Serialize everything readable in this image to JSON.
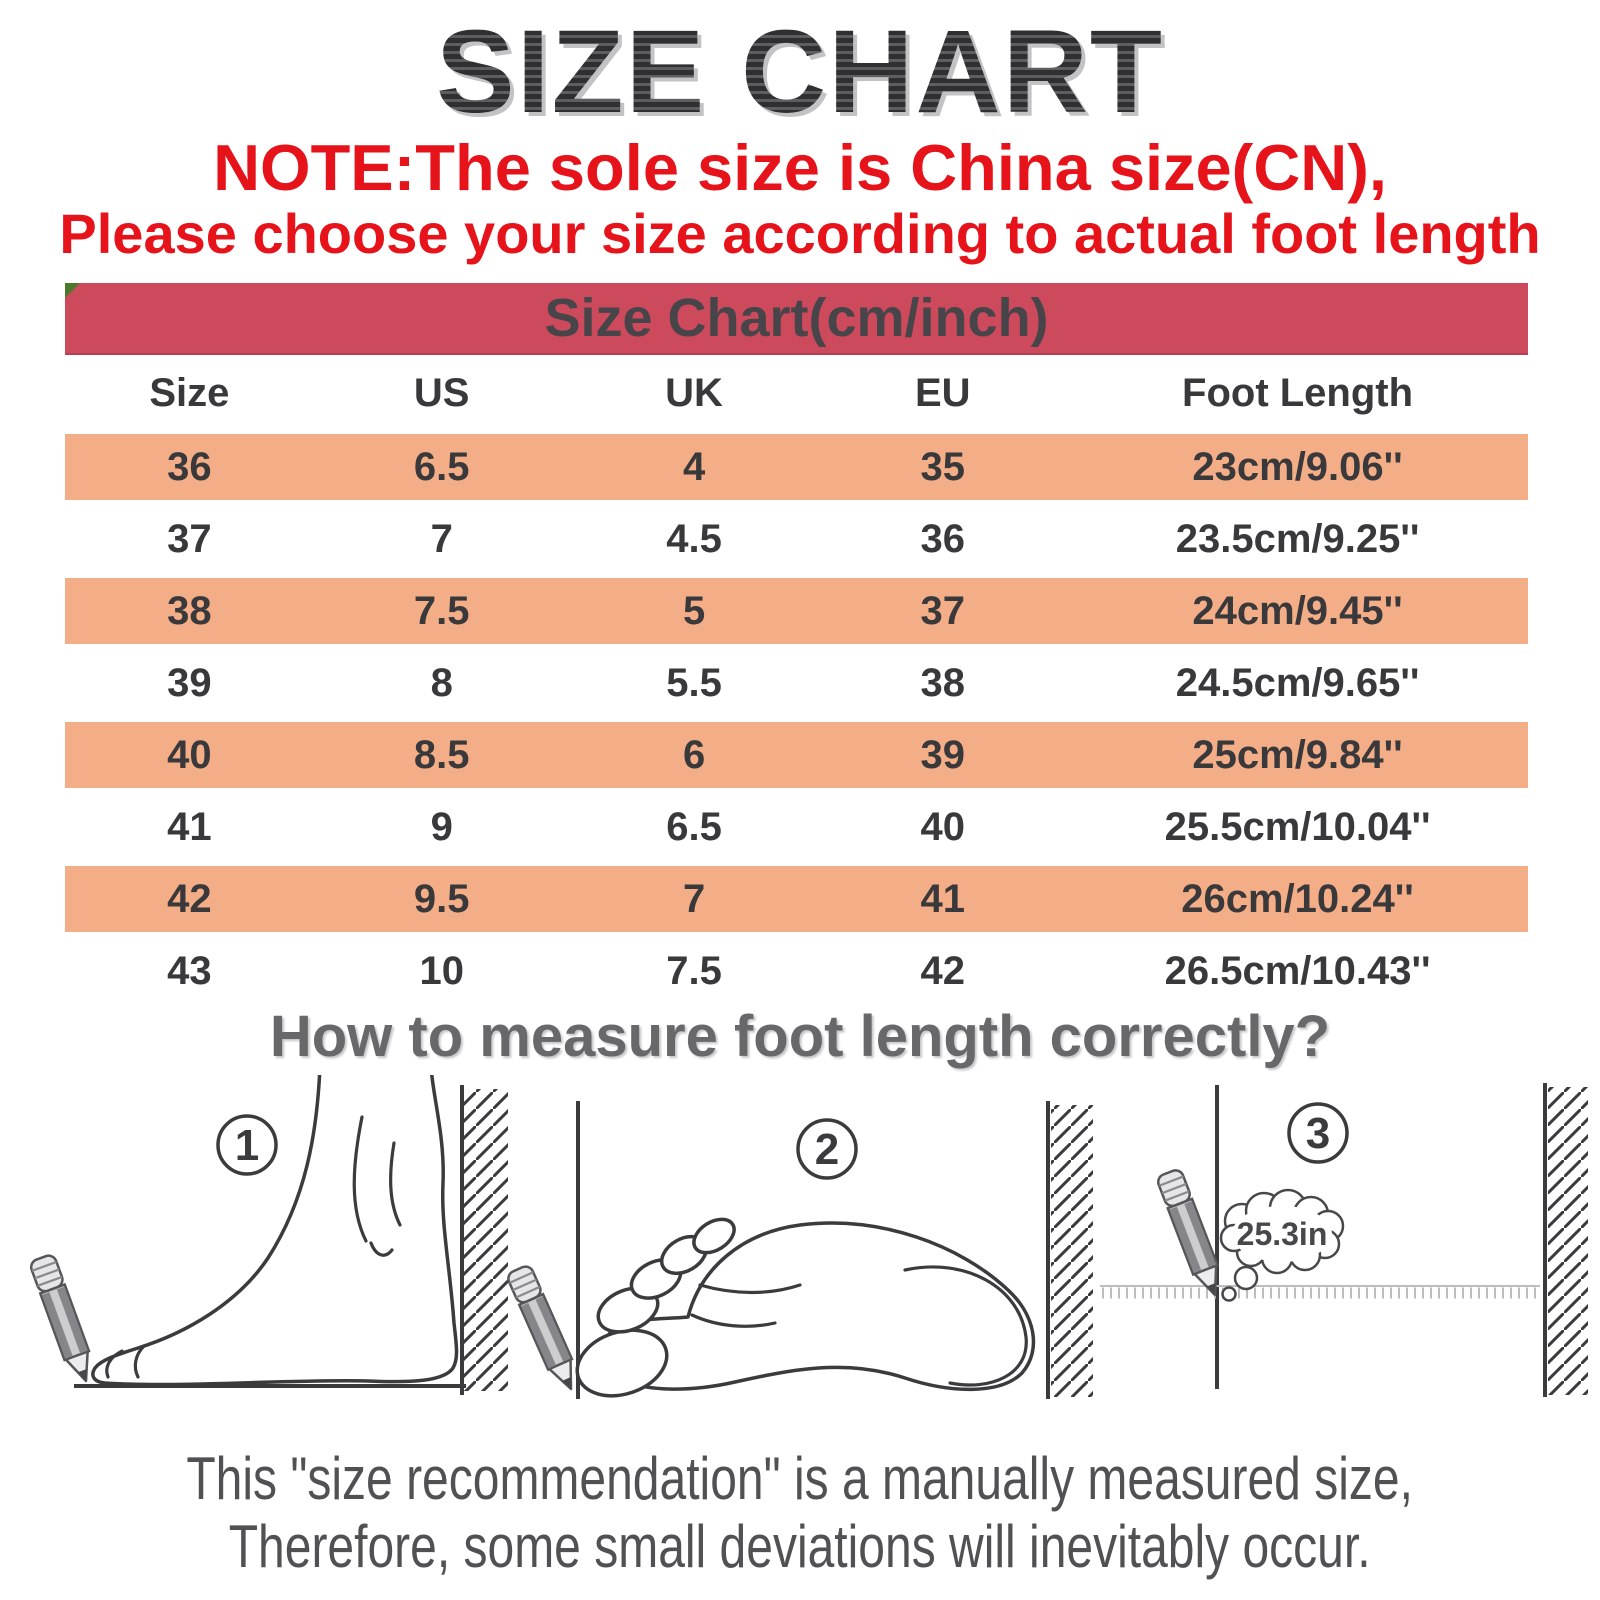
{
  "title": "SIZE CHART",
  "note": {
    "line1": "NOTE:The sole size is China size(CN),",
    "line2": "Please choose your size according to actual foot length"
  },
  "size_table": {
    "caption": "Size Chart(cm/inch)",
    "columns": [
      "Size",
      "US",
      "UK",
      "EU",
      "Foot Length"
    ],
    "rows": [
      [
        "36",
        "6.5",
        "4",
        "35",
        "23cm/9.06''"
      ],
      [
        "37",
        "7",
        "4.5",
        "36",
        "23.5cm/9.25''"
      ],
      [
        "38",
        "7.5",
        "5",
        "37",
        "24cm/9.45''"
      ],
      [
        "39",
        "8",
        "5.5",
        "38",
        "24.5cm/9.65''"
      ],
      [
        "40",
        "8.5",
        "6",
        "39",
        "25cm/9.84''"
      ],
      [
        "41",
        "9",
        "6.5",
        "40",
        "25.5cm/10.04''"
      ],
      [
        "42",
        "9.5",
        "7",
        "41",
        "26cm/10.24''"
      ],
      [
        "43",
        "10",
        "7.5",
        "42",
        "26.5cm/10.43''"
      ]
    ]
  },
  "measure_section": {
    "heading": "How to measure foot length correctly?",
    "steps": [
      "1",
      "2",
      "3"
    ],
    "bubble_text": "25.3in"
  },
  "footer": {
    "line1": "This \"size recommendation\" is a manually measured size,",
    "line2": "Therefore, some small deviations will inevitably occur."
  },
  "colors": {
    "accent_red_text": "#e6131a",
    "table_header_bar": "#cd4a5c",
    "row_orange": "#f4ae87",
    "text_dark": "#39383b",
    "heading_gray": "#68686b",
    "corner_green": "#4c7a2d"
  },
  "chart_data": {
    "type": "table",
    "title": "Size Chart(cm/inch)",
    "columns": [
      "Size",
      "US",
      "UK",
      "EU",
      "Foot Length"
    ],
    "rows": [
      [
        "36",
        "6.5",
        "4",
        "35",
        "23cm/9.06''"
      ],
      [
        "37",
        "7",
        "4.5",
        "36",
        "23.5cm/9.25''"
      ],
      [
        "38",
        "7.5",
        "5",
        "37",
        "24cm/9.45''"
      ],
      [
        "39",
        "8",
        "5.5",
        "38",
        "24.5cm/9.65''"
      ],
      [
        "40",
        "8.5",
        "6",
        "39",
        "25cm/9.84''"
      ],
      [
        "41",
        "9",
        "6.5",
        "40",
        "25.5cm/10.04''"
      ],
      [
        "42",
        "9.5",
        "7",
        "41",
        "26cm/10.24''"
      ],
      [
        "43",
        "10",
        "7.5",
        "42",
        "26.5cm/10.43''"
      ]
    ]
  }
}
